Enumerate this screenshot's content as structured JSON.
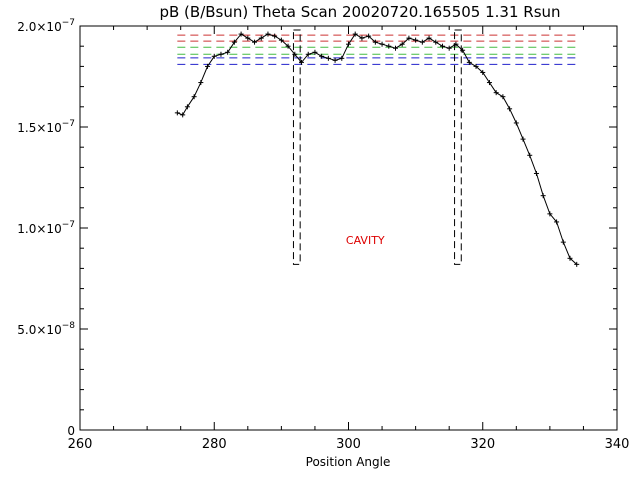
{
  "chart_data": {
    "type": "line",
    "title": "pB (B/Bsun) Theta Scan 20020720.165505 1.31 Rsun",
    "xlabel": "Position Angle",
    "ylabel": "",
    "xlim": [
      260,
      340
    ],
    "ylim": [
      0,
      2e-07
    ],
    "grid": false,
    "x_ticks": [
      260,
      280,
      300,
      320,
      340
    ],
    "y_ticks": [
      {
        "value": 0,
        "label": "0",
        "mant": "",
        "exp": ""
      },
      {
        "value": 5e-08,
        "label": "5.0×10⁻⁸",
        "mant": "5.0×10",
        "exp": "−8"
      },
      {
        "value": 1e-07,
        "label": "1.0×10⁻⁷",
        "mant": "1.0×10",
        "exp": "−7"
      },
      {
        "value": 1.5e-07,
        "label": "1.5×10⁻⁷",
        "mant": "1.5×10",
        "exp": "−7"
      },
      {
        "value": 2e-07,
        "label": "2.0×10⁻⁷",
        "mant": "2.0×10",
        "exp": "−7"
      }
    ],
    "series": [
      {
        "color": "#000000",
        "x": [
          274.5,
          275.3,
          276,
          277,
          278,
          279,
          280,
          281,
          282,
          283,
          284,
          285,
          286,
          287,
          288,
          289,
          290,
          291,
          292,
          293,
          294,
          295,
          296,
          297,
          298,
          299,
          300,
          301,
          302,
          303,
          304,
          305,
          306,
          307,
          308,
          309,
          310,
          311,
          312,
          313,
          314,
          315,
          316,
          317,
          318,
          319,
          320,
          321,
          322,
          323,
          324,
          325,
          326,
          327,
          328,
          329,
          330,
          331,
          332,
          333,
          334
        ],
        "y": [
          1.57e-07,
          1.56e-07,
          1.6e-07,
          1.65e-07,
          1.72e-07,
          1.8e-07,
          1.85e-07,
          1.86e-07,
          1.87e-07,
          1.92e-07,
          1.96e-07,
          1.94e-07,
          1.92e-07,
          1.94e-07,
          1.96e-07,
          1.95e-07,
          1.93e-07,
          1.9e-07,
          1.86e-07,
          1.82e-07,
          1.86e-07,
          1.87e-07,
          1.85e-07,
          1.84e-07,
          1.83e-07,
          1.84e-07,
          1.91e-07,
          1.96e-07,
          1.94e-07,
          1.95e-07,
          1.92e-07,
          1.91e-07,
          1.9e-07,
          1.89e-07,
          1.91e-07,
          1.94e-07,
          1.93e-07,
          1.92e-07,
          1.94e-07,
          1.92e-07,
          1.9e-07,
          1.89e-07,
          1.91e-07,
          1.88e-07,
          1.82e-07,
          1.8e-07,
          1.77e-07,
          1.72e-07,
          1.67e-07,
          1.65e-07,
          1.59e-07,
          1.52e-07,
          1.44e-07,
          1.36e-07,
          1.27e-07,
          1.16e-07,
          1.07e-07,
          1.03e-07,
          9.3e-08,
          8.5e-08,
          8.2e-08
        ]
      }
    ],
    "reference_lines": [
      {
        "y": 1.955e-07,
        "color": "#cc3333"
      },
      {
        "y": 1.925e-07,
        "color": "#cc3333"
      },
      {
        "y": 1.895e-07,
        "color": "#44bb44"
      },
      {
        "y": 1.86e-07,
        "color": "#44bb44"
      },
      {
        "y": 1.842e-07,
        "color": "#2222cc"
      },
      {
        "y": 1.81e-07,
        "color": "#2222cc"
      }
    ],
    "cavity_boundaries": [
      {
        "x0": 291.8,
        "x1": 292.8,
        "ymin": 8.2e-08,
        "ymax": 1.98e-07
      },
      {
        "x0": 315.8,
        "x1": 316.8,
        "ymin": 8.2e-08,
        "ymax": 1.98e-07
      }
    ],
    "annotations": [
      {
        "text": "CAVITY",
        "x": 302.5,
        "y": 9.2e-08,
        "color": "#dd0000"
      }
    ]
  }
}
